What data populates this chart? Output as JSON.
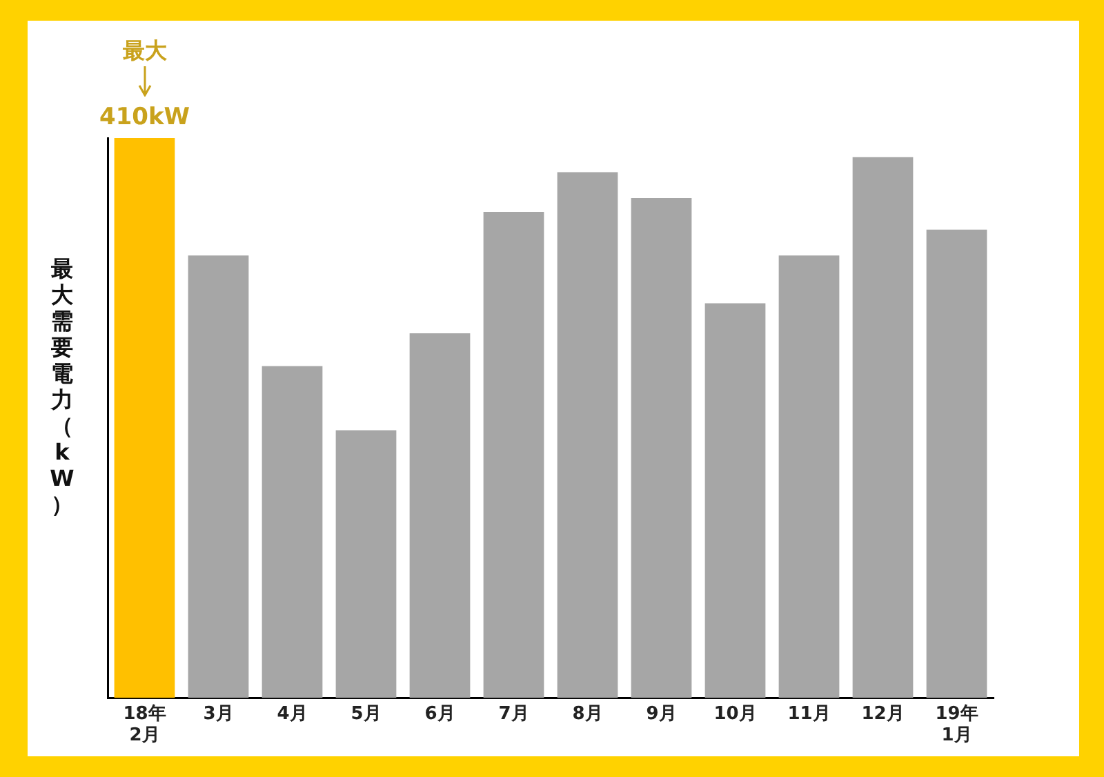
{
  "chart_data": {
    "type": "bar",
    "ylabel": "最大需要電力（kW）",
    "categories": [
      "18年\n2月",
      "3月",
      "4月",
      "5月",
      "6月",
      "7月",
      "8月",
      "9月",
      "10月",
      "11月",
      "12月",
      "19年\n1月"
    ],
    "values": [
      410,
      324,
      243,
      196,
      267,
      356,
      385,
      366,
      289,
      324,
      396,
      343
    ],
    "colors": [
      "#ffc000",
      "#a6a6a6",
      "#a6a6a6",
      "#a6a6a6",
      "#a6a6a6",
      "#a6a6a6",
      "#a6a6a6",
      "#a6a6a6",
      "#a6a6a6",
      "#a6a6a6",
      "#a6a6a6",
      "#a6a6a6"
    ],
    "value_labels": [
      "410kW",
      null,
      null,
      null,
      null,
      null,
      null,
      null,
      null,
      null,
      null,
      null
    ],
    "annotations": [
      "最大"
    ],
    "grid": false,
    "legend": false
  }
}
